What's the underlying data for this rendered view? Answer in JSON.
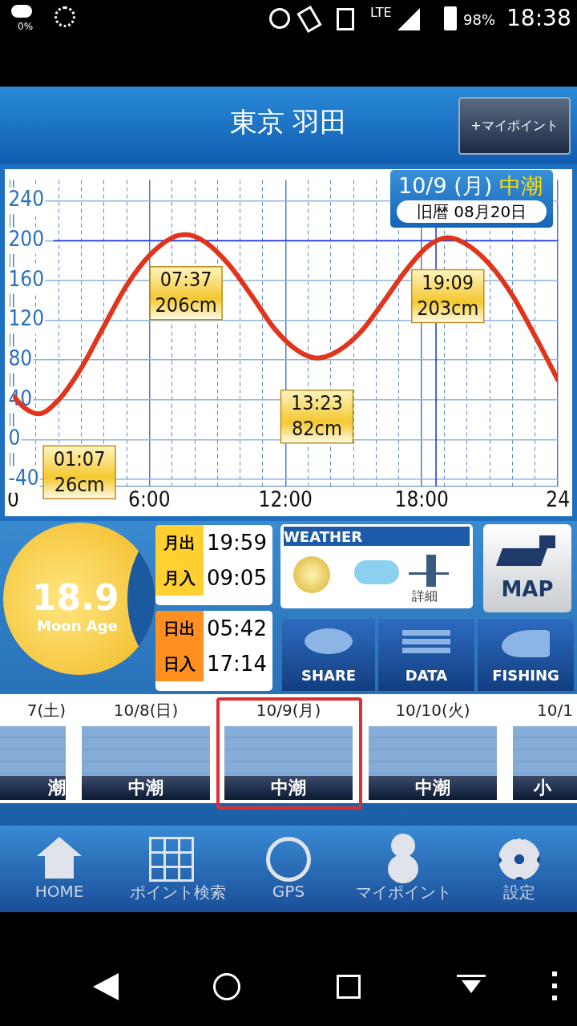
{
  "chart_data": {
    "type": "line",
    "title": "東京 羽田",
    "x": [
      0,
      0.5,
      1.117,
      2,
      3,
      4,
      5,
      6,
      7,
      7.617,
      8.5,
      9.5,
      10.5,
      11.5,
      12.5,
      13.383,
      14.3,
      15.3,
      16.3,
      17.3,
      18.3,
      19.15,
      20,
      21,
      22,
      23,
      24
    ],
    "series": [
      {
        "color": "#e0341c",
        "values": [
          44,
          32,
          26,
          40,
          72,
          114,
          155,
          185,
          203,
          206,
          198,
          176,
          145,
          112,
          90,
          82,
          89,
          108,
          138,
          170,
          195,
          203,
          196,
          176,
          145,
          104,
          60
        ]
      }
    ],
    "xlim": [
      0,
      24
    ],
    "ylim": [
      -47,
      261
    ],
    "xticks": [
      {
        "value": 0,
        "label": "0"
      },
      {
        "value": 1,
        "label": null
      },
      {
        "value": 2,
        "label": null
      },
      {
        "value": 3,
        "label": null
      },
      {
        "value": 4,
        "label": null
      },
      {
        "value": 5,
        "label": null
      },
      {
        "value": 6,
        "label": "6:00"
      },
      {
        "value": 7,
        "label": null
      },
      {
        "value": 8,
        "label": null
      },
      {
        "value": 9,
        "label": null
      },
      {
        "value": 10,
        "label": null
      },
      {
        "value": 11,
        "label": null
      },
      {
        "value": 12,
        "label": "12:00"
      },
      {
        "value": 13,
        "label": null
      },
      {
        "value": 14,
        "label": null
      },
      {
        "value": 15,
        "label": null
      },
      {
        "value": 16,
        "label": null
      },
      {
        "value": 17,
        "label": null
      },
      {
        "value": 18,
        "label": "18:00"
      },
      {
        "value": 19,
        "label": null
      },
      {
        "value": 20,
        "label": null
      },
      {
        "value": 21,
        "label": null
      },
      {
        "value": 22,
        "label": null
      },
      {
        "value": 23,
        "label": null
      },
      {
        "value": 24,
        "label": "24"
      }
    ],
    "yticks": [
      -40,
      0,
      40,
      80,
      120,
      160,
      200,
      240
    ],
    "grid": true,
    "legend": false,
    "marker": "none",
    "line_style": "solid",
    "ref_lines": [
      {
        "axis": "y",
        "value": 200,
        "color": "#1030e0"
      },
      {
        "axis": "x",
        "value": 18.63,
        "color": "#1030e0"
      }
    ],
    "annotations": [
      {
        "text": "01:07\n26cm",
        "x": 1.117,
        "y": 26
      },
      {
        "text": "07:37\n206cm",
        "x": 7.617,
        "y": 206
      },
      {
        "text": "13:23\n82cm",
        "x": 13.383,
        "y": 82
      },
      {
        "text": "19:09\n203cm",
        "x": 19.15,
        "y": 203
      },
      "10/9 (月)",
      "中潮",
      "旧暦 08月20日",
      "+マイポイント",
      "18.9",
      "Moon Age",
      "月出",
      "19:59",
      "月入",
      "09:05",
      "日出",
      "05:42",
      "日入",
      "17:14",
      "WEATHER",
      "詳細",
      "MAP",
      "SHARE",
      "DATA",
      "FISHING",
      "7(土)",
      "潮",
      "10/8(日)",
      "中潮",
      "10/9(月)",
      "中潮",
      "10/10(火)",
      "中潮",
      "10/1",
      "小",
      "HOME",
      "ポイント検索",
      "GPS",
      "マイポイント",
      "設定",
      "0%",
      "LTE",
      "98%",
      "18:38"
    ]
  }
}
